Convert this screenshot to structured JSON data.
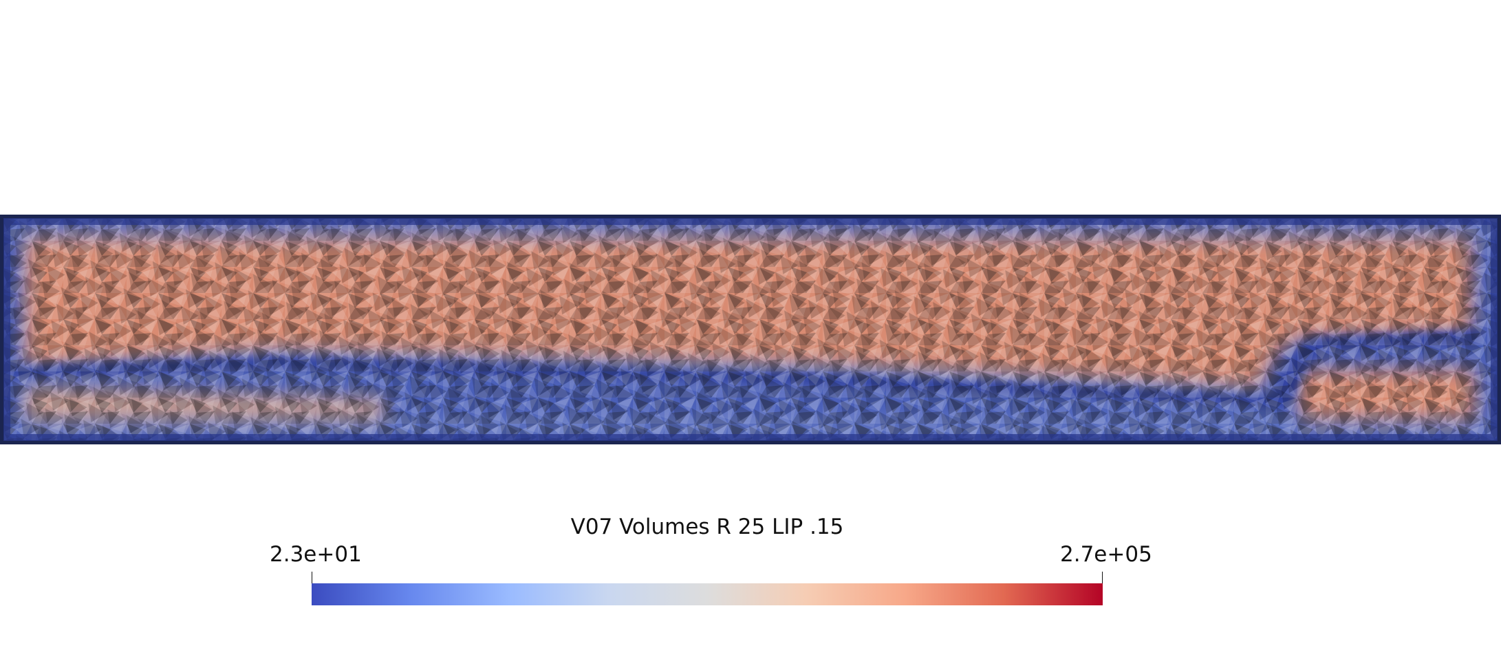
{
  "colorbar": {
    "title": "V07 Volumes R 25 LIP .15",
    "min_label": "2.3e+01",
    "max_label": "2.7e+05",
    "range": [
      23,
      270000
    ],
    "colormap": "cool-to-warm",
    "stops": [
      "#3b4cc0",
      "#6788ee",
      "#9abbff",
      "#c9d7f0",
      "#dddddd",
      "#f6cdb4",
      "#f7a889",
      "#e26952",
      "#b40426"
    ]
  },
  "mesh": {
    "outline_color": "#1b2550",
    "low_color": "#3b4cc0",
    "high_color": "#e0694e"
  }
}
